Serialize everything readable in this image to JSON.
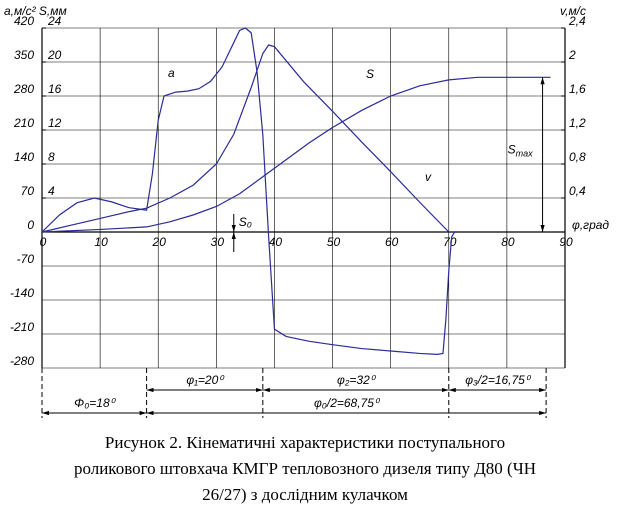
{
  "chart_data": {
    "type": "line",
    "y_axis_title": "a,м/c²  S,мм",
    "y2_axis_title": "v,м/с",
    "x_axis_title": "φ,град",
    "xlim": [
      0,
      90
    ],
    "xticks": [
      0,
      10,
      20,
      30,
      40,
      50,
      60,
      70,
      80,
      90
    ],
    "ylim": [
      -280,
      420
    ],
    "yticks": [
      420,
      350,
      280,
      210,
      140,
      70,
      0,
      -70,
      -140,
      -210,
      -280
    ],
    "y2lim": [
      -1.6,
      2.4
    ],
    "y2ticks": [
      {
        "value": 2.4,
        "label": "2,4"
      },
      2,
      {
        "value": 1.6,
        "label": "1,6"
      },
      {
        "value": 1.2,
        "label": "1,2"
      },
      {
        "value": 0.8,
        "label": "0,8"
      },
      {
        "value": 0.4,
        "label": "0,4"
      }
    ],
    "y3lim": [
      -16,
      24
    ],
    "y3ticks": [
      24,
      20,
      16,
      12,
      8,
      4
    ],
    "grid": true,
    "series": [
      {
        "name": "a",
        "color": "#2b2b9a",
        "axis": "y",
        "x": [
          0,
          3,
          6,
          9,
          12,
          15,
          18,
          19,
          20,
          21,
          23,
          25,
          27,
          29,
          31,
          33,
          34,
          35,
          36,
          37,
          38,
          39,
          40,
          42,
          46,
          50,
          55,
          60,
          65,
          68,
          69,
          69.5,
          70,
          70.5,
          71
        ],
        "values": [
          0,
          35,
          60,
          70,
          62,
          50,
          45,
          120,
          230,
          280,
          288,
          290,
          295,
          310,
          340,
          390,
          415,
          420,
          410,
          330,
          200,
          -10,
          -200,
          -215,
          -225,
          -232,
          -240,
          -245,
          -250,
          -252,
          -250,
          -180,
          -80,
          -10,
          0
        ]
      },
      {
        "name": "S",
        "color": "#2b2b9a",
        "axis": "y3",
        "x": [
          0,
          10,
          18,
          22,
          26,
          30,
          34,
          38,
          42,
          46,
          50,
          55,
          60,
          65,
          70,
          75,
          80,
          87.5
        ],
        "values": [
          0,
          0.3,
          0.6,
          1.2,
          2,
          3,
          4.5,
          6.5,
          8.5,
          10.5,
          12.3,
          14.3,
          16,
          17.2,
          17.9,
          18.2,
          18.2,
          18.2
        ]
      },
      {
        "name": "v",
        "color": "#2b2b9a",
        "axis": "y2",
        "x": [
          0,
          5,
          10,
          15,
          18,
          22,
          26,
          30,
          33,
          36,
          38,
          39,
          40,
          45,
          50,
          55,
          60,
          65,
          70
        ],
        "values": [
          0,
          0.08,
          0.16,
          0.24,
          0.28,
          0.4,
          0.55,
          0.8,
          1.15,
          1.7,
          2.1,
          2.2,
          2.18,
          1.77,
          1.42,
          1.06,
          0.71,
          0.35,
          0
        ]
      }
    ],
    "s0_label": "S₀",
    "s0_x": 33,
    "smax_label": "S",
    "smax_sub": "max",
    "smax_x": 87,
    "dimensions_upper": [
      {
        "from": 18,
        "to": 38,
        "label": "φ₁=20⁰"
      },
      {
        "from": 38,
        "to": 70,
        "label": "φ₂=32⁰"
      },
      {
        "from": 70,
        "to": 86.75,
        "label": "φ₃/2=16,75⁰"
      }
    ],
    "dimensions_lower": [
      {
        "from": 0,
        "to": 18,
        "label": "Φ₀=18⁰"
      },
      {
        "from": 18,
        "to": 86.75,
        "label": "φ₀/2=68,75⁰"
      }
    ],
    "caption": [
      "Рисунок 2. Кінематичні характеристики поступального",
      "роликового штовхача КМГР тепловозного дизеля типу Д80 (ЧН",
      "26/27) з дослідним  кулачком"
    ]
  }
}
